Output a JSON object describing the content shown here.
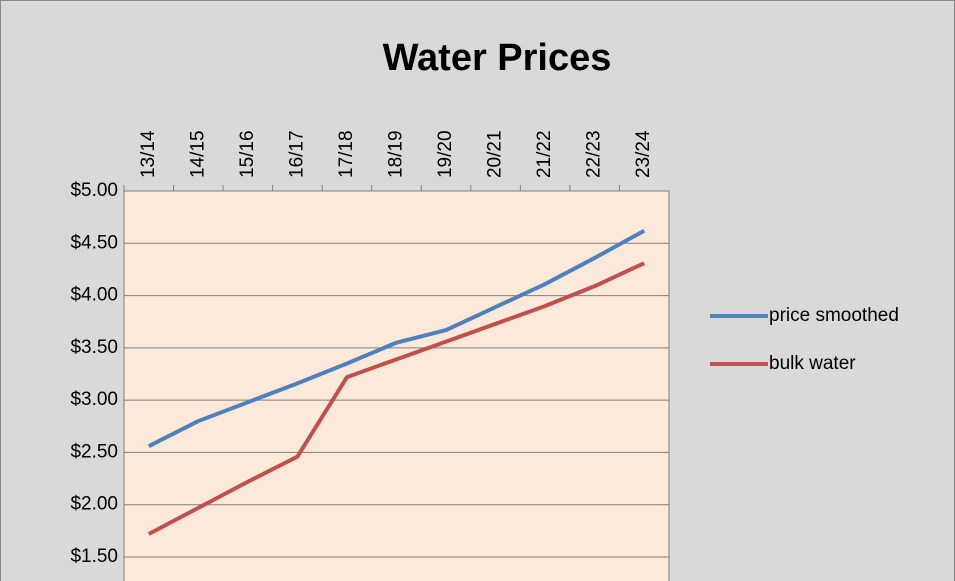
{
  "chart_data": {
    "type": "line",
    "title": "Water Prices",
    "categories": [
      "13/14",
      "14/15",
      "15/16",
      "16/17",
      "17/18",
      "18/19",
      "19/20",
      "20/21",
      "21/22",
      "22/23",
      "23/24"
    ],
    "series": [
      {
        "name": "price smoothed",
        "color": "#4f81bd",
        "values": [
          2.56,
          2.8,
          2.98,
          3.16,
          3.35,
          3.55,
          3.67,
          3.89,
          4.11,
          4.36,
          4.62
        ]
      },
      {
        "name": "bulk water",
        "color": "#c0504d",
        "values": [
          1.72,
          1.97,
          2.22,
          2.46,
          3.22,
          3.39,
          3.56,
          3.73,
          3.9,
          4.09,
          4.31
        ]
      }
    ],
    "ylim": [
      1.5,
      5
    ],
    "yticks": [
      {
        "value": 1.5,
        "label": "$1.50"
      },
      {
        "value": 2,
        "label": "$2.00"
      },
      {
        "value": 2.5,
        "label": "$2.50"
      },
      {
        "value": 3,
        "label": "$3.00"
      },
      {
        "value": 3.5,
        "label": "$3.50"
      },
      {
        "value": 4,
        "label": "$4.00"
      },
      {
        "value": 4.5,
        "label": "$4.50"
      },
      {
        "value": 5,
        "label": "$5.00"
      }
    ],
    "grid": true,
    "legend": "right"
  }
}
